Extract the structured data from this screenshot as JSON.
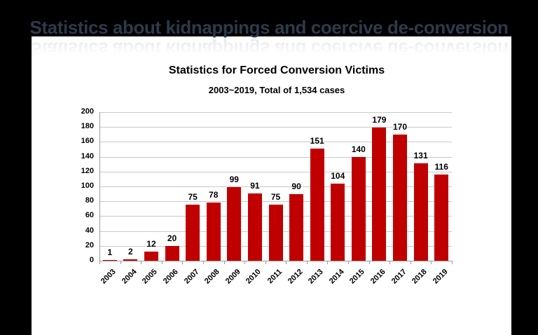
{
  "slide": {
    "title": "Statistics about kidnappings and coercive de-conversion",
    "title_color": "#2d3a4b",
    "background_color": "#000000",
    "panel_color": "#ffffff"
  },
  "chart_data": {
    "type": "bar",
    "title": "Statistics for Forced Conversion Victims",
    "subtitle": "2003~2019, Total of 1,534 cases",
    "categories": [
      "2003",
      "2004",
      "2005",
      "2006",
      "2007",
      "2008",
      "2009",
      "2010",
      "2011",
      "2012",
      "2013",
      "2014",
      "2015",
      "2016",
      "2017",
      "2018",
      "2019"
    ],
    "values": [
      1,
      2,
      12,
      20,
      75,
      78,
      99,
      91,
      75,
      90,
      151,
      104,
      140,
      179,
      170,
      131,
      116
    ],
    "ylim": [
      0,
      200
    ],
    "ytick_step": 20,
    "grid": true,
    "legend_position": "none",
    "bar_color": "#C00000",
    "gridline_color": "#C9C9C9",
    "axis_color": "#9B9B9B",
    "label_color": "#000000",
    "xlabel": "",
    "ylabel": ""
  }
}
